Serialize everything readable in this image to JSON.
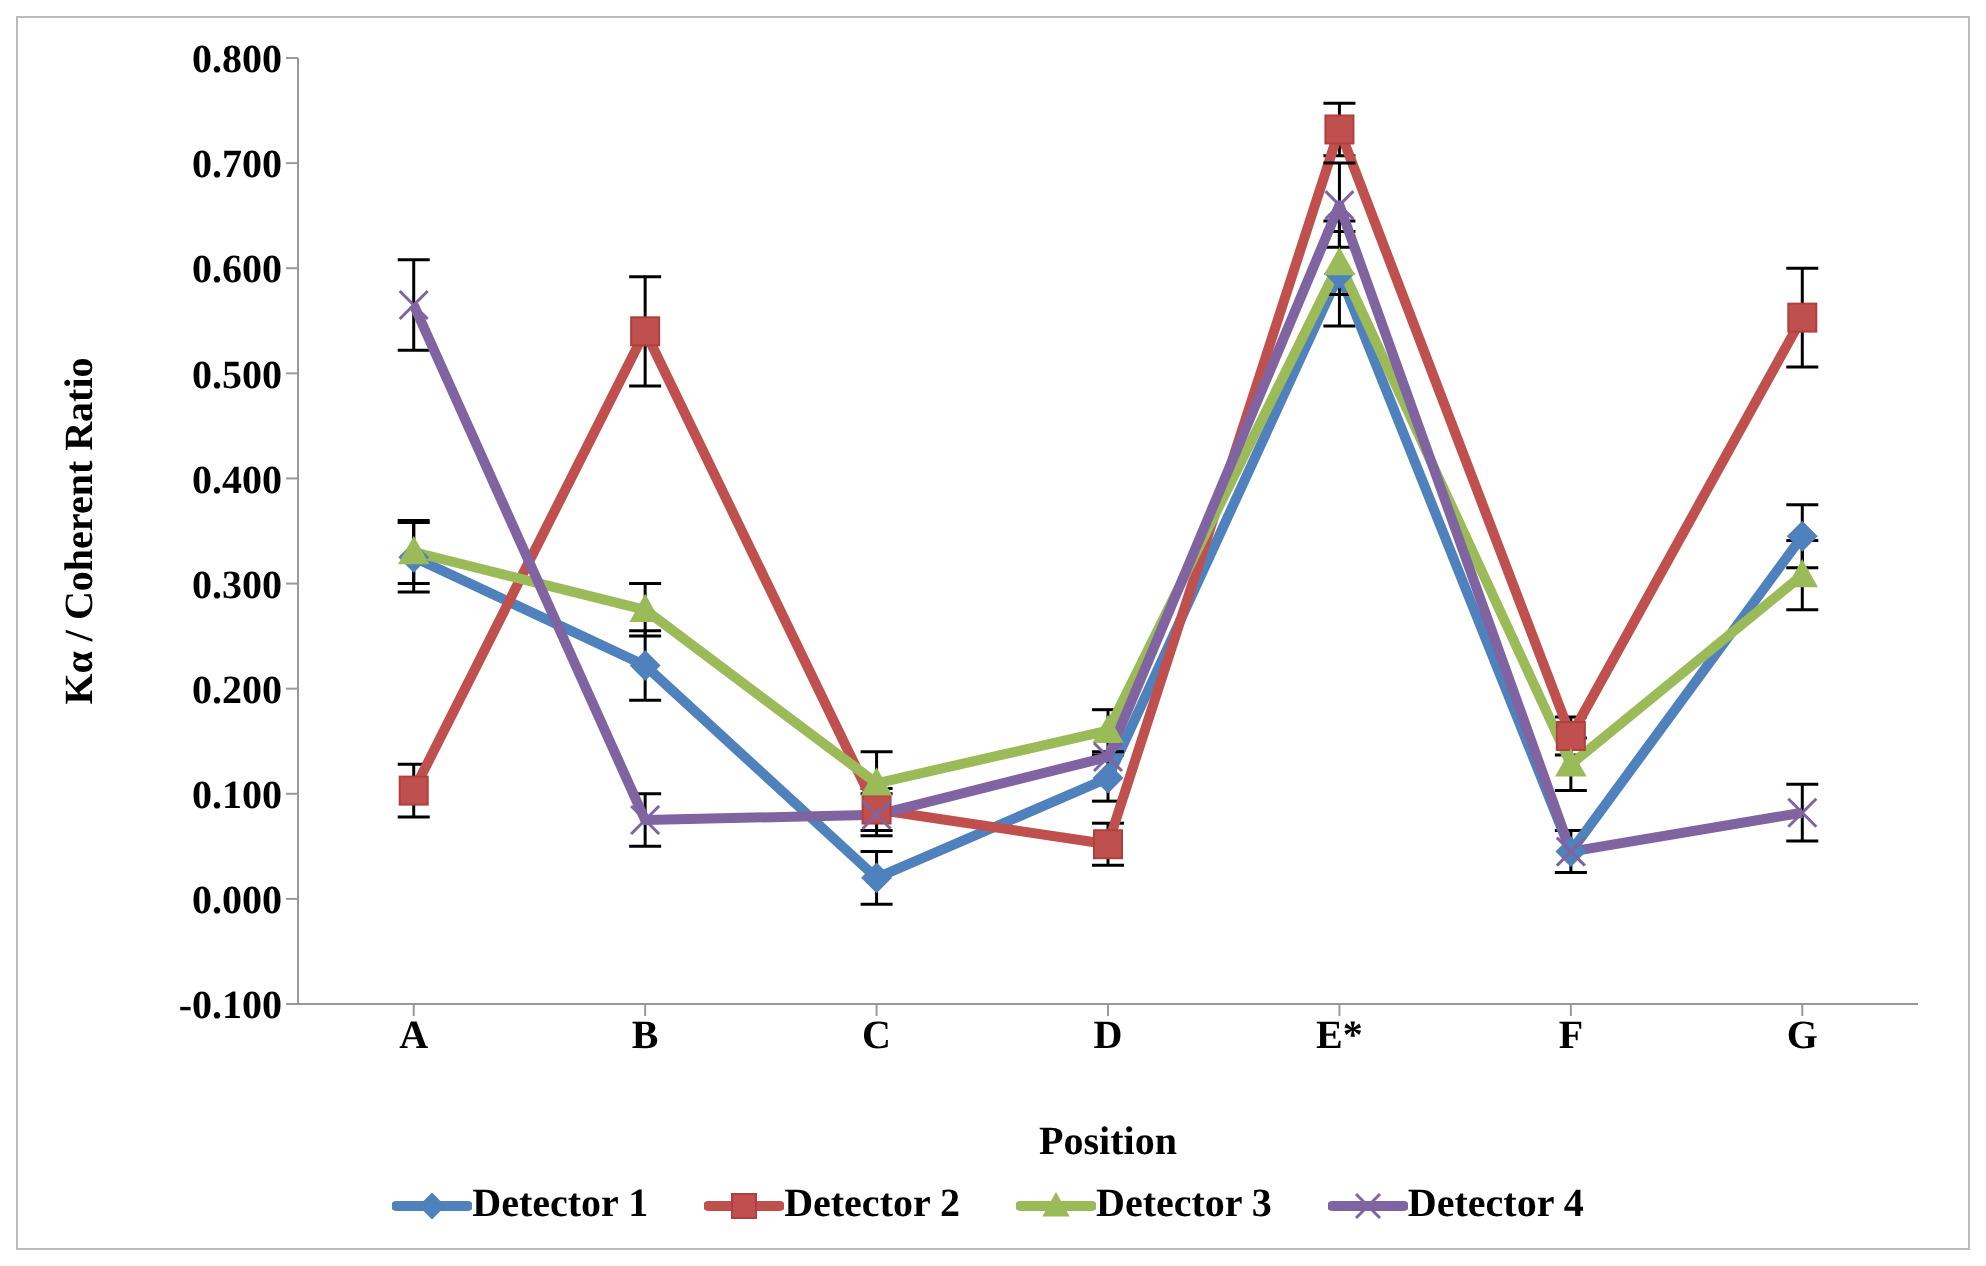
{
  "chart_data": {
    "type": "line",
    "xlabel": "Position",
    "ylabel": "Kα / Coherent Ratio",
    "categories": [
      "A",
      "B",
      "C",
      "D",
      "E*",
      "F",
      "G"
    ],
    "ylim": [
      -0.1,
      0.8
    ],
    "yticks": [
      {
        "value": -0.1,
        "label": "-0.100"
      },
      {
        "value": 0,
        "label": "0.000"
      },
      {
        "value": 0.1,
        "label": "0.100"
      },
      {
        "value": 0.2,
        "label": "0.200"
      },
      {
        "value": 0.3,
        "label": "0.300"
      },
      {
        "value": 0.4,
        "label": "0.400"
      },
      {
        "value": 0.5,
        "label": "0.500"
      },
      {
        "value": 0.6,
        "label": "0.600"
      },
      {
        "value": 0.7,
        "label": "0.700"
      },
      {
        "value": 0.8,
        "label": "0.800"
      }
    ],
    "grid": false,
    "legend": "bottom",
    "line_style": "solid",
    "series": [
      {
        "name": "Detector 1",
        "color": "#4f81bd",
        "marker": "diamond",
        "values": [
          0.325,
          0.222,
          0.02,
          0.115,
          0.595,
          0.045,
          0.345
        ],
        "errors": [
          0.033,
          0.033,
          0.025,
          0.022,
          0.05,
          0.02,
          0.03
        ]
      },
      {
        "name": "Detector 2",
        "color": "#c0504d",
        "marker": "square",
        "values": [
          0.103,
          0.54,
          0.085,
          0.052,
          0.732,
          0.155,
          0.553
        ],
        "errors": [
          0.025,
          0.052,
          0.02,
          0.02,
          0.025,
          0.018,
          0.047
        ]
      },
      {
        "name": "Detector 3",
        "color": "#9bbb59",
        "marker": "triangle",
        "values": [
          0.33,
          0.275,
          0.11,
          0.16,
          0.605,
          0.128,
          0.308
        ],
        "errors": [
          0.03,
          0.025,
          0.03,
          0.02,
          0.03,
          0.025,
          0.033
        ]
      },
      {
        "name": "Detector 4",
        "color": "#8064a2",
        "marker": "cross",
        "values": [
          0.565,
          0.075,
          0.08,
          0.135,
          0.66,
          0.045,
          0.082
        ],
        "errors": [
          0.043,
          0.025,
          0.02,
          null,
          0.04,
          null,
          0.027
        ]
      }
    ]
  }
}
